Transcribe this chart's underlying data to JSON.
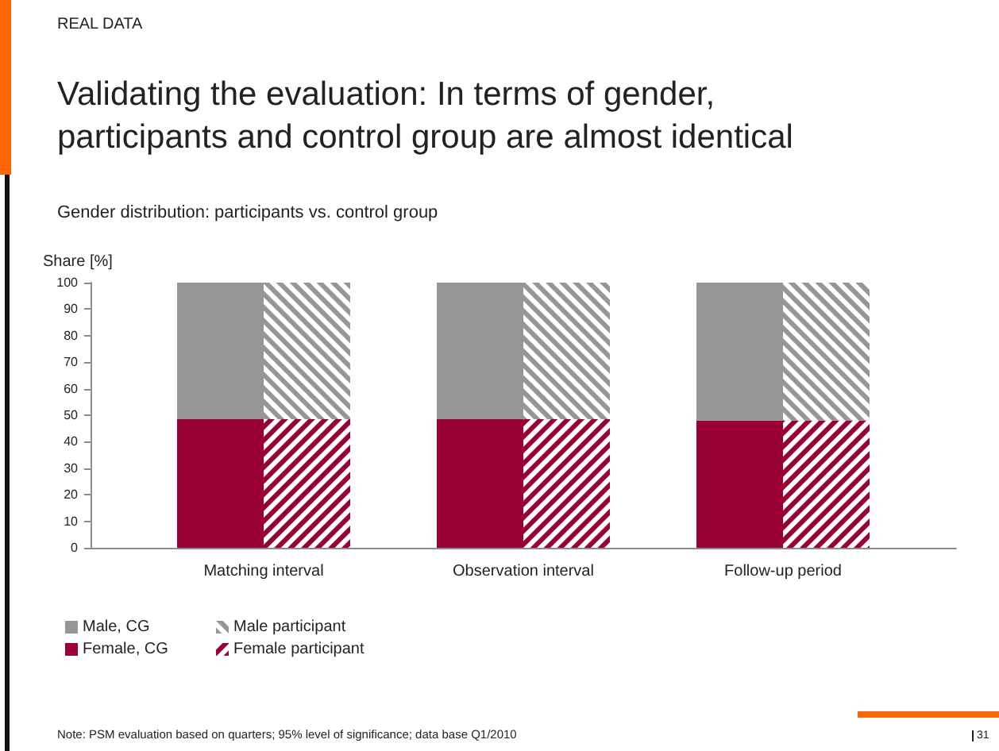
{
  "chart_data": {
    "type": "bar",
    "title": "Validating the evaluation: In terms of gender, participants and control group are almost identical",
    "subtitle": "Gender distribution: participants vs. control group",
    "ylabel": "Share [%]",
    "annotations": [
      "REAL DATA",
      "Note: PSM evaluation based on quarters; 95% level of significance; data base Q1/2010",
      "31"
    ],
    "categories": [
      null,
      "Matching interval",
      null,
      null,
      "Observation interval",
      null,
      null,
      "Follow-up period",
      null,
      null
    ],
    "stacked": true,
    "ylim": [
      0,
      100
    ],
    "yticks": [
      0,
      10,
      20,
      30,
      40,
      50,
      60,
      70,
      80,
      90,
      100
    ],
    "grid": false,
    "legend": "bottom left",
    "series": [
      {
        "name": "Female, CG",
        "color": "#990033",
        "values": [
          null,
          48.5,
          null,
          null,
          48.5,
          null,
          null,
          48,
          null,
          null
        ]
      },
      {
        "name": "Male, CG",
        "color": "#969696",
        "values": [
          null,
          51.5,
          null,
          null,
          51.5,
          null,
          null,
          52,
          null,
          null
        ]
      },
      {
        "name": "Female participant",
        "color": "#990033",
        "values": [
          null,
          null,
          48.5,
          null,
          null,
          48.5,
          null,
          null,
          48,
          null
        ]
      },
      {
        "name": "Male participant",
        "color": "#969696",
        "values": [
          null,
          null,
          51.5,
          null,
          null,
          51.5,
          null,
          null,
          52,
          null
        ]
      }
    ]
  }
}
